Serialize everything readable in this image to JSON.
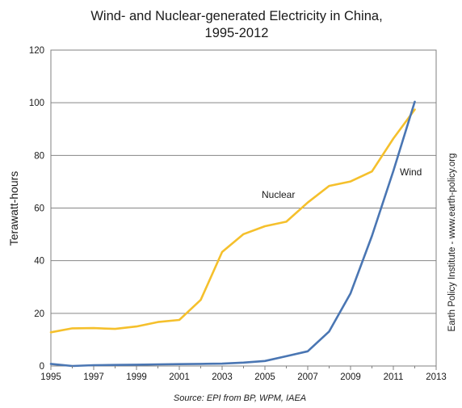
{
  "chart_data": {
    "type": "line",
    "title_line1": "Wind- and Nuclear-generated Electricity in China,",
    "title_line2": "1995-2012",
    "ylabel": "Terawatt-hours",
    "source": "Source: EPI from BP, WPM, IAEA",
    "credit": "Earth Policy Institute - www.earth-policy.org",
    "xlim": [
      1995,
      2013
    ],
    "ylim": [
      0,
      120
    ],
    "x_ticks": [
      "1995",
      "1997",
      "1999",
      "2001",
      "2003",
      "2005",
      "2007",
      "2009",
      "2011",
      "2013"
    ],
    "y_ticks": [
      "0",
      "20",
      "40",
      "60",
      "80",
      "100",
      "120"
    ],
    "grid": true,
    "series": [
      {
        "name": "Nuclear",
        "color": "#f5c02c",
        "x": [
          1995,
          1996,
          1997,
          1998,
          1999,
          2000,
          2001,
          2002,
          2003,
          2004,
          2005,
          2006,
          2007,
          2008,
          2009,
          2010,
          2011,
          2012
        ],
        "y": [
          12.8,
          14.3,
          14.4,
          14.1,
          15.0,
          16.7,
          17.5,
          25.1,
          43.3,
          50.1,
          53.1,
          54.8,
          62.1,
          68.4,
          70.1,
          73.9,
          86.4,
          97.4
        ]
      },
      {
        "name": "Wind",
        "color": "#4a76b3",
        "x": [
          1995,
          1996,
          1997,
          1998,
          1999,
          2000,
          2001,
          2002,
          2003,
          2004,
          2005,
          2006,
          2007,
          2008,
          2009,
          2010,
          2011,
          2012
        ],
        "y": [
          0.8,
          0.0,
          0.3,
          0.4,
          0.5,
          0.6,
          0.7,
          0.8,
          0.9,
          1.3,
          1.9,
          3.7,
          5.6,
          13.1,
          27.6,
          49.4,
          74.1,
          100.4
        ]
      }
    ]
  }
}
